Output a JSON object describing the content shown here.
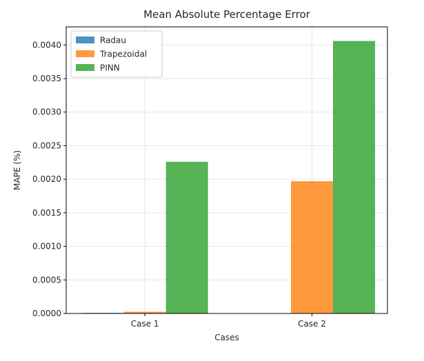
{
  "chart_data": {
    "type": "bar",
    "title": "Mean Absolute Percentage Error",
    "xlabel": "Cases",
    "ylabel": "MAPE (%)",
    "categories": [
      "Case 1",
      "Case 2"
    ],
    "series": [
      {
        "name": "Radau",
        "values": [
          8e-06,
          0.0
        ],
        "color": "#1f77b4"
      },
      {
        "name": "Trapezoidal",
        "values": [
          2.5e-05,
          0.00197
        ],
        "color": "#ff7f0e"
      },
      {
        "name": "PINN",
        "values": [
          0.00226,
          0.00406
        ],
        "color": "#2ca02c"
      }
    ],
    "ylim": [
      0,
      0.00427
    ],
    "yticks": [
      "0.0000",
      "0.0005",
      "0.0010",
      "0.0015",
      "0.0020",
      "0.0025",
      "0.0030",
      "0.0035",
      "0.0040"
    ],
    "grid": true,
    "legend_position": "upper-left"
  }
}
